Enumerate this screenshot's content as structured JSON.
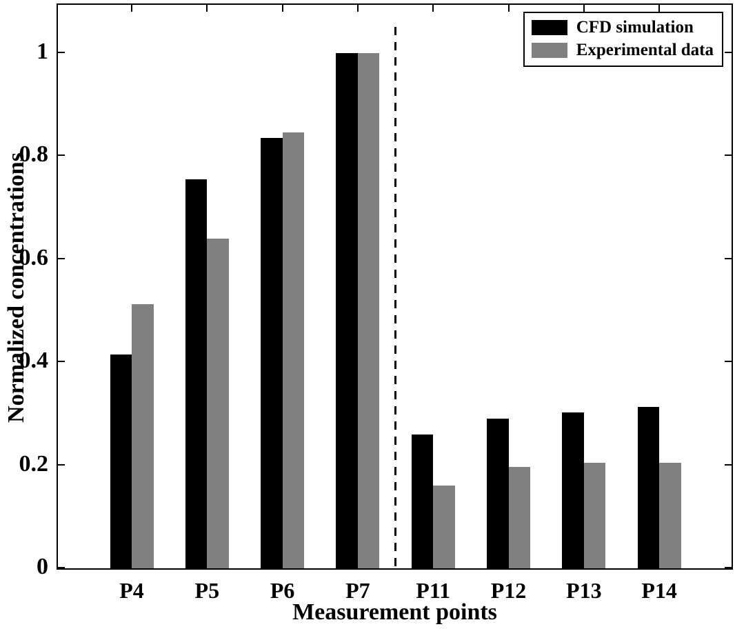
{
  "figure": {
    "background": "#ffffff",
    "axis_color": "#000000"
  },
  "chart_data": {
    "type": "bar",
    "title": "",
    "xlabel": "Measurement points",
    "ylabel": "Normalized concentrations",
    "categories": [
      "P4",
      "P5",
      "P6",
      "P7",
      "P11",
      "P12",
      "P13",
      "P14"
    ],
    "series": [
      {
        "name": "CFD simulation",
        "color": "#000000",
        "values": [
          0.415,
          0.755,
          0.835,
          1.0,
          0.26,
          0.29,
          0.302,
          0.313
        ]
      },
      {
        "name": "Experimental data",
        "color": "#808080",
        "values": [
          0.513,
          0.64,
          0.845,
          1.0,
          0.16,
          0.197,
          0.205,
          0.205
        ]
      }
    ],
    "ylim": [
      0,
      1.093
    ],
    "yticks": [
      0,
      0.2,
      0.4,
      0.6,
      0.8,
      1
    ],
    "ytick_labels": [
      "0",
      "0.2",
      "0.4",
      "0.6",
      "0.8",
      "1"
    ],
    "grid": false,
    "legend_position": "top-right",
    "separator": {
      "style": "dashed",
      "between": [
        "P7",
        "P11"
      ],
      "color": "#000000",
      "top_value": 1.05
    }
  }
}
